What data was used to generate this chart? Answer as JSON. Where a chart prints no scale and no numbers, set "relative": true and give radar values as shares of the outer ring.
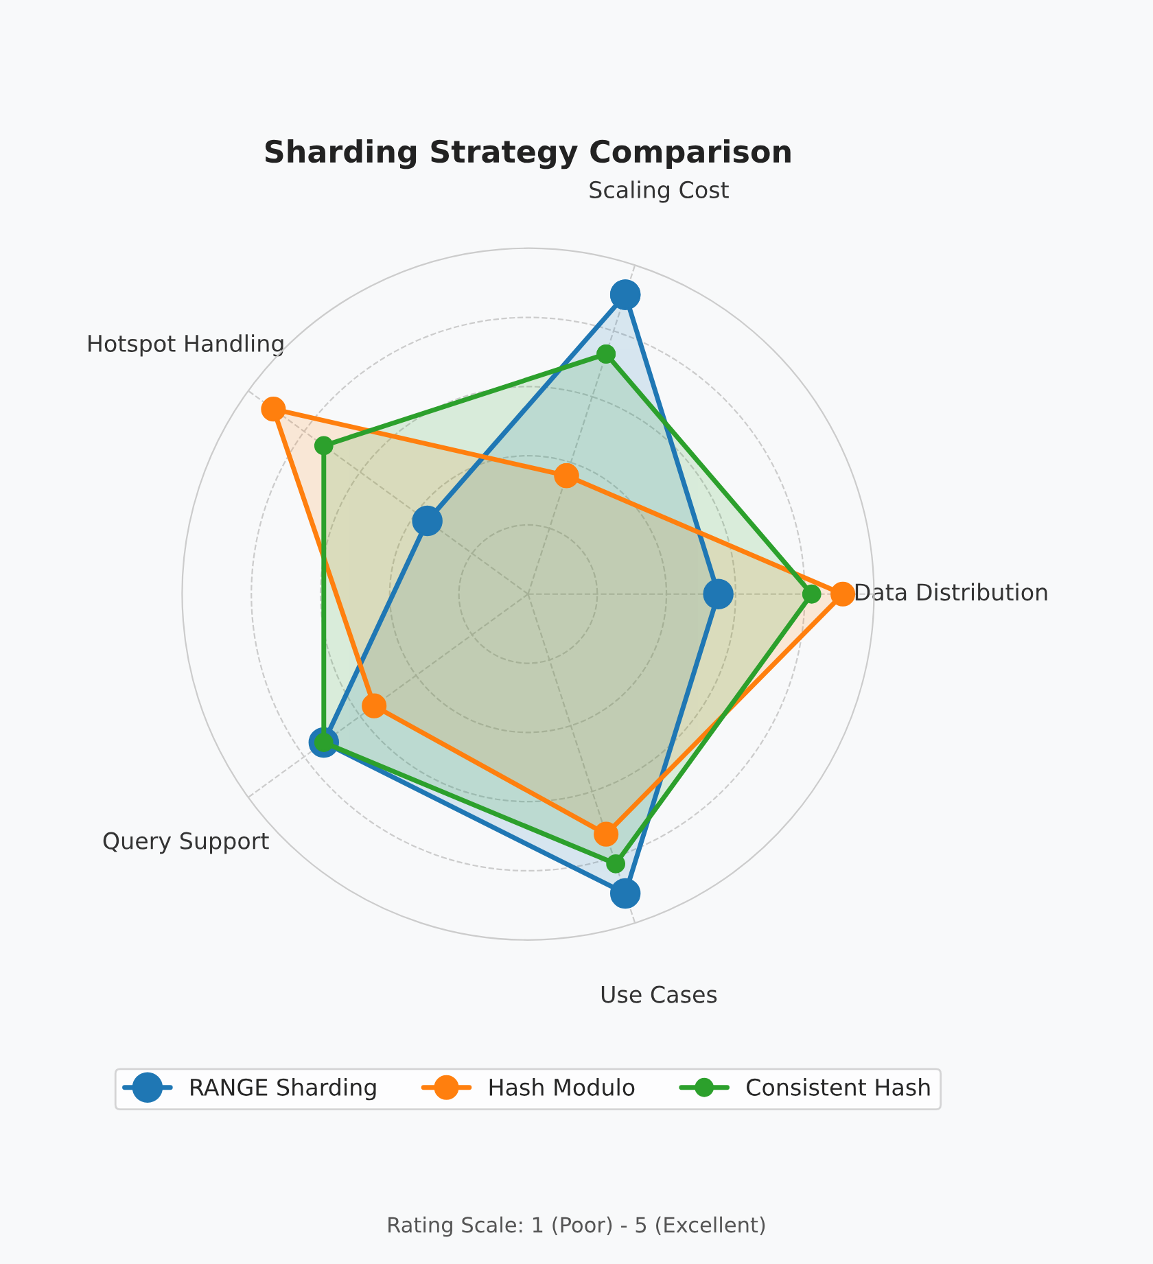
{
  "chart_data": {
    "type": "radar",
    "title": "Sharding Strategy Comparison",
    "categories": [
      "Scaling Cost",
      "Data Distribution",
      "Use Cases",
      "Query Support",
      "Hotspot Handling"
    ],
    "series": [
      {
        "name": "RANGE Sharding",
        "color": "#1f77b4",
        "values": [
          0.91,
          0.55,
          0.91,
          0.73,
          0.36
        ]
      },
      {
        "name": "Hash Modulo",
        "color": "#ff7f0e",
        "values": [
          0.36,
          0.91,
          0.73,
          0.55,
          0.91
        ]
      },
      {
        "name": "Consistent Hash",
        "color": "#2ca02c",
        "values": [
          0.73,
          0.82,
          0.82,
          0.73,
          0.73
        ]
      }
    ],
    "relative": true,
    "grid": true,
    "marker": "circle",
    "line_style": "solid",
    "legend": "bottom",
    "annotations": [
      "Rating Scale: 1 (Poor) - 5 (Excellent)"
    ]
  }
}
